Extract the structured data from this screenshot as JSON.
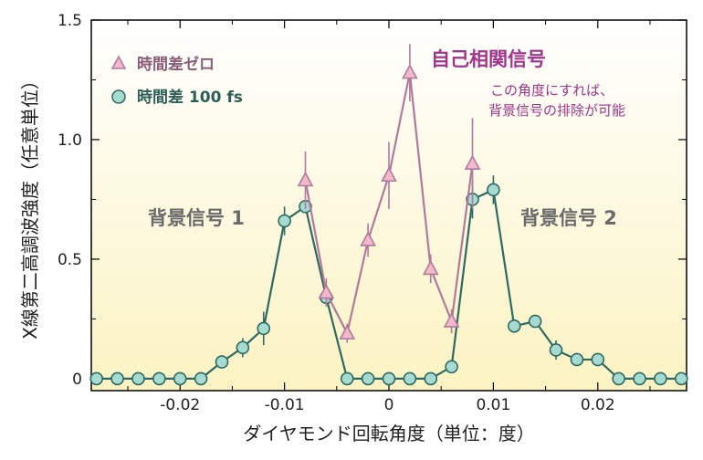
{
  "chart_data": {
    "type": "line",
    "xlabel": "ダイヤモンド回転角度（単位：度）",
    "ylabel": "X線第二高調波強度（任意単位）",
    "xlim": [
      -0.0285,
      0.0285
    ],
    "ylim": [
      -0.05,
      1.5
    ],
    "x_ticks": [
      -0.02,
      -0.01,
      0,
      0.01,
      0.02
    ],
    "x_tick_labels": [
      "-0.02",
      "-0.01",
      "0",
      "0.01",
      "0.02"
    ],
    "y_ticks": [
      0,
      0.5,
      1.0,
      1.5
    ],
    "y_tick_labels": [
      "0",
      "0.5",
      "1.0",
      "1.5"
    ],
    "grid": false,
    "legend_placement": "top-left",
    "series": [
      {
        "name": "時間差ゼロ",
        "marker": "triangle",
        "color": "#b07a9c",
        "fill": "#f2b8cc",
        "points": [
          {
            "x": -0.008,
            "y": 0.83,
            "err": 0.12
          },
          {
            "x": -0.006,
            "y": 0.36,
            "err": 0.06
          },
          {
            "x": -0.004,
            "y": 0.19,
            "err": 0.04
          },
          {
            "x": -0.002,
            "y": 0.58,
            "err": 0.07
          },
          {
            "x": 0.0,
            "y": 0.85,
            "err": 0.14
          },
          {
            "x": 0.002,
            "y": 1.28,
            "err": 0.12
          },
          {
            "x": 0.004,
            "y": 0.46,
            "err": 0.06
          },
          {
            "x": 0.006,
            "y": 0.24,
            "err": 0.05
          },
          {
            "x": 0.008,
            "y": 0.9,
            "err": 0.19
          }
        ]
      },
      {
        "name": "時間差 100 fs",
        "marker": "circle",
        "color": "#2e6a63",
        "fill": "#a6dbd2",
        "points": [
          {
            "x": -0.028,
            "y": 0.0,
            "err": 0
          },
          {
            "x": -0.026,
            "y": 0.0,
            "err": 0
          },
          {
            "x": -0.024,
            "y": 0.0,
            "err": 0
          },
          {
            "x": -0.022,
            "y": 0.0,
            "err": 0
          },
          {
            "x": -0.02,
            "y": 0.0,
            "err": 0
          },
          {
            "x": -0.018,
            "y": 0.0,
            "err": 0
          },
          {
            "x": -0.016,
            "y": 0.07,
            "err": 0
          },
          {
            "x": -0.014,
            "y": 0.13,
            "err": 0.04
          },
          {
            "x": -0.012,
            "y": 0.21,
            "err": 0.07
          },
          {
            "x": -0.01,
            "y": 0.66,
            "err": 0.06
          },
          {
            "x": -0.008,
            "y": 0.72,
            "err": 0
          },
          {
            "x": -0.006,
            "y": 0.34,
            "err": 0
          },
          {
            "x": -0.004,
            "y": 0.0,
            "err": 0
          },
          {
            "x": -0.002,
            "y": 0.0,
            "err": 0
          },
          {
            "x": 0.0,
            "y": 0.0,
            "err": 0
          },
          {
            "x": 0.002,
            "y": 0.0,
            "err": 0
          },
          {
            "x": 0.004,
            "y": 0.0,
            "err": 0
          },
          {
            "x": 0.006,
            "y": 0.05,
            "err": 0
          },
          {
            "x": 0.008,
            "y": 0.75,
            "err": 0.08
          },
          {
            "x": 0.01,
            "y": 0.79,
            "err": 0.06
          },
          {
            "x": 0.012,
            "y": 0.22,
            "err": 0
          },
          {
            "x": 0.014,
            "y": 0.24,
            "err": 0
          },
          {
            "x": 0.016,
            "y": 0.12,
            "err": 0.04
          },
          {
            "x": 0.018,
            "y": 0.08,
            "err": 0
          },
          {
            "x": 0.02,
            "y": 0.08,
            "err": 0
          },
          {
            "x": 0.022,
            "y": 0.0,
            "err": 0
          },
          {
            "x": 0.024,
            "y": 0.0,
            "err": 0
          },
          {
            "x": 0.026,
            "y": 0.0,
            "err": 0
          },
          {
            "x": 0.028,
            "y": 0.0,
            "err": 0
          }
        ]
      }
    ],
    "annotations": {
      "background1": "背景信号 1",
      "background2": "背景信号 2",
      "autocorrelation": "自己相関信号",
      "note_line1": "この角度にすれば、",
      "note_line2": "背景信号の排除が可能"
    },
    "colors": {
      "annotation_gray": "#6a6a6a",
      "autocorrelation_label": "#a0348c",
      "note_text": "#a0348c",
      "legend_zero_text": "#8a5c78",
      "legend_100_text": "#2e5e58",
      "background_gradient_top": "#ffffff",
      "background_gradient_bottom": "#fbf3c2"
    }
  }
}
